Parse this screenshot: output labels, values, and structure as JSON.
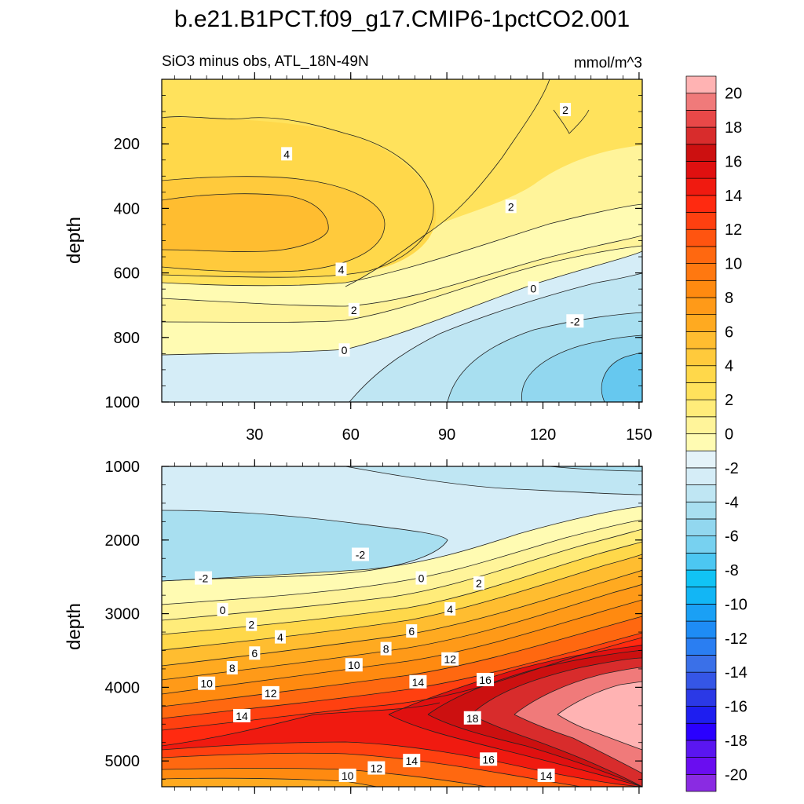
{
  "title": "b.e21.B1PCT.f09_g17.CMIP6-1pctCO2.001",
  "colorbar": {
    "levels": [
      -21,
      -20,
      -19,
      -18,
      -17,
      -16,
      -15,
      -14,
      -13,
      -12,
      -11,
      -10,
      -9,
      -8,
      -7,
      -6,
      -5,
      -4,
      -3,
      -2,
      -1,
      0,
      1,
      2,
      3,
      4,
      5,
      6,
      7,
      8,
      9,
      10,
      11,
      12,
      13,
      14,
      15,
      16,
      17,
      18,
      19,
      20,
      21
    ],
    "colors": [
      "#8a2be2",
      "#6a0df0",
      "#5a16f0",
      "#2a00ff",
      "#1e1ef0",
      "#2b39e6",
      "#3556e6",
      "#3a70e8",
      "#2a7ef2",
      "#1e8cf5",
      "#1aa0f5",
      "#12b6f5",
      "#11c3f5",
      "#4cc7f2",
      "#77d1f0",
      "#92d7ef",
      "#a8dff0",
      "#bfe6f3",
      "#d5edf7",
      "#e4f3f9",
      "#fffbb2",
      "#fff49a",
      "#ffec7a",
      "#ffe25c",
      "#ffd84a",
      "#ffca3c",
      "#ffbd30",
      "#ffaa20",
      "#ff9a18",
      "#ff8a10",
      "#ff7810",
      "#ff6810",
      "#ff5410",
      "#ff4010",
      "#ff2a10",
      "#f01a10",
      "#e01010",
      "#cc1010",
      "#d82c2c",
      "#e84848",
      "#f07a7a",
      "#ffb3b3"
    ],
    "tick_labels": [
      "-20",
      "-18",
      "-16",
      "-14",
      "-12",
      "-10",
      "-8",
      "-6",
      "-4",
      "-2",
      "0",
      "2",
      "4",
      "6",
      "8",
      "10",
      "12",
      "14",
      "16",
      "18",
      "20"
    ]
  },
  "chart_data": [
    {
      "type": "contour",
      "subtitle_left": "SiO3 minus obs, ATL_18N-49N",
      "subtitle_right": "mmol/m^3",
      "ylabel": "depth",
      "x_range": [
        1,
        151
      ],
      "y_range": [
        0,
        1000
      ],
      "x_ticks": [
        30,
        60,
        90,
        120,
        150
      ],
      "x_tick_labels": [
        "30",
        "60",
        "90",
        "120",
        "150"
      ],
      "y_ticks": [
        200,
        400,
        600,
        800,
        1000
      ],
      "y_tick_labels": [
        "200",
        "400",
        "600",
        "800",
        "1000"
      ],
      "contour_labels": [
        {
          "text": "4",
          "x": 40,
          "y": 232
        },
        {
          "text": "2",
          "x": 110,
          "y": 395
        },
        {
          "text": "2",
          "x": 127,
          "y": 95
        },
        {
          "text": "4",
          "x": 57,
          "y": 590
        },
        {
          "text": "2",
          "x": 61,
          "y": 715
        },
        {
          "text": "0",
          "x": 117,
          "y": 648
        },
        {
          "text": "-2",
          "x": 130,
          "y": 750
        },
        {
          "text": "0",
          "x": 58,
          "y": 840
        }
      ]
    },
    {
      "type": "contour",
      "ylabel": "depth",
      "x_range": [
        1,
        151
      ],
      "y_range": [
        1000,
        5350
      ],
      "y_ticks": [
        1000,
        2000,
        3000,
        4000,
        5000
      ],
      "y_tick_labels": [
        "1000",
        "2000",
        "3000",
        "4000",
        "5000"
      ],
      "contour_labels": [
        {
          "text": "-2",
          "x": 14,
          "y": 2520
        },
        {
          "text": "-2",
          "x": 63,
          "y": 2200
        },
        {
          "text": "0",
          "x": 20,
          "y": 2950
        },
        {
          "text": "0",
          "x": 82,
          "y": 2520
        },
        {
          "text": "2",
          "x": 29,
          "y": 3150
        },
        {
          "text": "2",
          "x": 100,
          "y": 2590
        },
        {
          "text": "4",
          "x": 38,
          "y": 3320
        },
        {
          "text": "4",
          "x": 91,
          "y": 2940
        },
        {
          "text": "6",
          "x": 30,
          "y": 3540
        },
        {
          "text": "6",
          "x": 79,
          "y": 3240
        },
        {
          "text": "8",
          "x": 23,
          "y": 3740
        },
        {
          "text": "8",
          "x": 71,
          "y": 3480
        },
        {
          "text": "10",
          "x": 15,
          "y": 3950
        },
        {
          "text": "10",
          "x": 61,
          "y": 3700
        },
        {
          "text": "12",
          "x": 35,
          "y": 4080
        },
        {
          "text": "12",
          "x": 91,
          "y": 3620
        },
        {
          "text": "14",
          "x": 26,
          "y": 4390
        },
        {
          "text": "14",
          "x": 81,
          "y": 3930
        },
        {
          "text": "14",
          "x": 79,
          "y": 5000
        },
        {
          "text": "14",
          "x": 121,
          "y": 5200
        },
        {
          "text": "16",
          "x": 102,
          "y": 3900
        },
        {
          "text": "16",
          "x": 103,
          "y": 4980
        },
        {
          "text": "18",
          "x": 98,
          "y": 4420
        },
        {
          "text": "12",
          "x": 68,
          "y": 5100
        },
        {
          "text": "10",
          "x": 59,
          "y": 5200
        }
      ]
    }
  ]
}
